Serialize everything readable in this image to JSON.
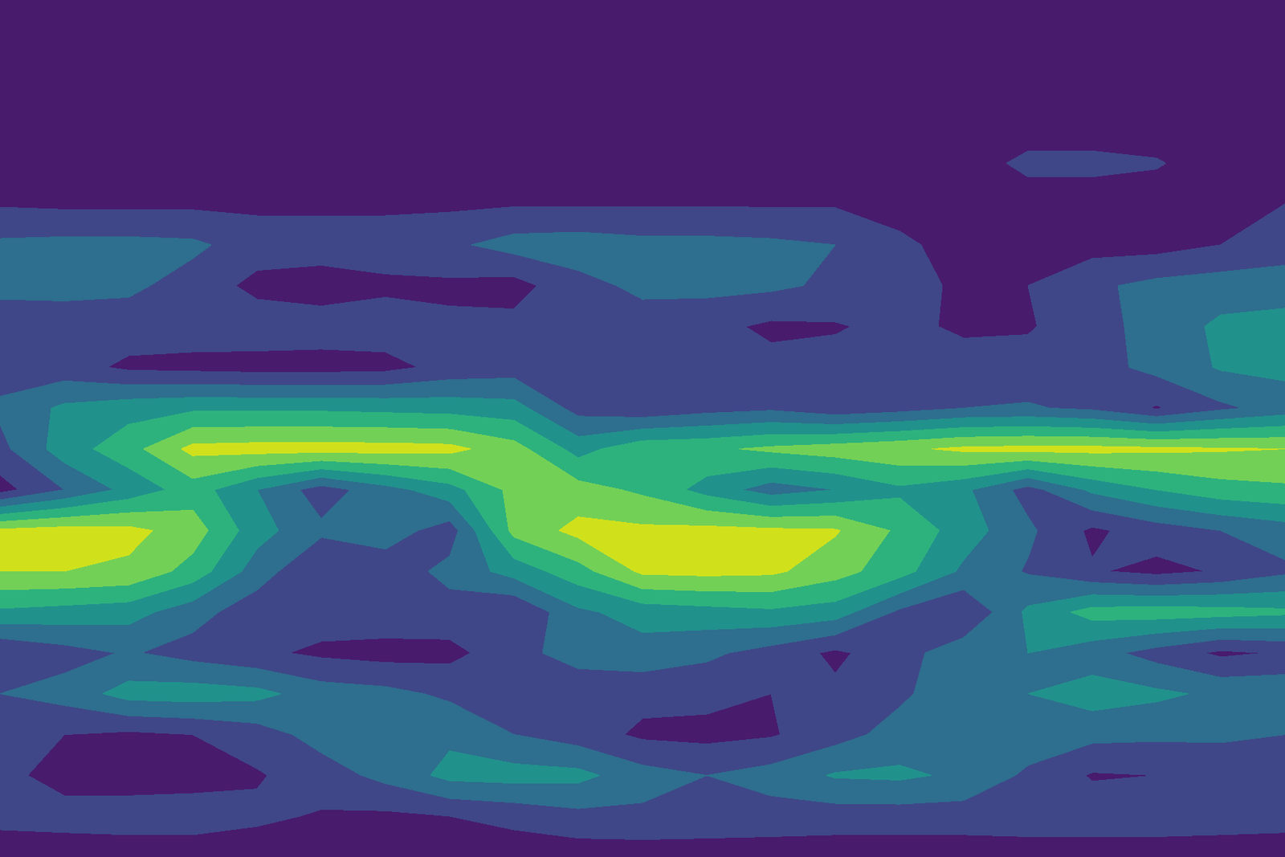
{
  "chart_data": {
    "type": "contour",
    "tick_labels": false,
    "levels": [
      0,
      1,
      2,
      3,
      4,
      5,
      6,
      7
    ],
    "cells": [
      [
        0.3,
        0.3,
        0.3,
        0.3,
        0.3,
        0.3,
        0.3,
        0.3,
        0.3,
        0.3,
        0.3,
        0.3,
        0.3,
        0.3,
        0.3,
        0.3,
        0.3,
        0.3,
        0.3,
        0.3,
        0.3
      ],
      [
        0.3,
        0.3,
        0.3,
        0.3,
        0.3,
        0.3,
        0.3,
        0.3,
        0.3,
        0.3,
        0.3,
        0.3,
        0.3,
        0.3,
        0.3,
        0.3,
        0.3,
        0.3,
        0.3,
        0.3,
        0.3
      ],
      [
        0.3,
        0.3,
        0.3,
        0.3,
        0.3,
        0.3,
        0.3,
        0.3,
        0.3,
        0.3,
        0.3,
        0.3,
        0.3,
        0.3,
        0.3,
        0.3,
        0.3,
        0.3,
        0.3,
        0.3,
        0.3
      ],
      [
        0.3,
        0.3,
        0.3,
        0.3,
        0.3,
        0.3,
        0.3,
        0.3,
        0.3,
        0.3,
        0.3,
        0.3,
        0.3,
        0.3,
        0.3,
        0.3,
        0.3,
        0.3,
        0.3,
        0.3,
        0.3
      ],
      [
        0.4,
        0.4,
        0.4,
        0.4,
        0.4,
        0.4,
        0.4,
        0.4,
        0.4,
        0.4,
        0.4,
        0.4,
        0.4,
        0.4,
        0.4,
        0.4,
        1.3,
        1.3,
        1.1,
        0.4,
        0.4
      ],
      [
        0.9,
        0.8,
        0.8,
        0.8,
        0.8,
        0.8,
        0.8,
        0.8,
        0.9,
        0.9,
        0.9,
        0.9,
        0.9,
        0.9,
        0.6,
        0.4,
        0.4,
        0.4,
        0.4,
        0.4,
        1.0
      ],
      [
        2.2,
        2.3,
        2.3,
        2.2,
        1.5,
        1.5,
        1.5,
        1.8,
        2.4,
        2.5,
        2.3,
        2.3,
        2.2,
        2.0,
        1.2,
        0.6,
        0.6,
        0.6,
        0.6,
        1.0,
        1.5
      ],
      [
        2.3,
        2.3,
        2.2,
        1.6,
        0.7,
        0.5,
        0.8,
        0.8,
        0.6,
        1.7,
        2.2,
        2.3,
        2.2,
        1.8,
        1.4,
        0.8,
        1.0,
        1.8,
        2.3,
        2.5,
        2.5
      ],
      [
        1.4,
        1.5,
        1.5,
        1.5,
        1.6,
        1.5,
        1.5,
        1.2,
        1.3,
        1.8,
        1.6,
        1.3,
        0.8,
        0.9,
        1.3,
        0.8,
        0.9,
        1.6,
        2.4,
        3.2,
        3.4
      ],
      [
        1.5,
        1.4,
        0.8,
        0.7,
        0.6,
        0.6,
        0.7,
        1.3,
        1.5,
        1.6,
        1.6,
        1.5,
        1.3,
        1.4,
        1.5,
        1.5,
        1.4,
        1.6,
        2.3,
        3.1,
        3.3
      ],
      [
        2.2,
        3.2,
        3.6,
        3.8,
        3.8,
        3.8,
        3.7,
        3.6,
        3.4,
        1.6,
        1.2,
        1.6,
        1.8,
        1.3,
        1.6,
        2.0,
        2.1,
        1.8,
        0.9,
        1.8,
        2.4
      ],
      [
        1.7,
        3.5,
        4.6,
        6.3,
        6.4,
        6.4,
        6.4,
        6.3,
        5.4,
        3.6,
        4.7,
        4.8,
        5.2,
        5.5,
        5.8,
        6.2,
        6.3,
        6.3,
        6.2,
        6.1,
        6.0
      ],
      [
        0.6,
        2.0,
        3.3,
        4.5,
        3.0,
        1.5,
        2.6,
        3.6,
        5.3,
        5.4,
        4.8,
        3.6,
        2.5,
        3.0,
        3.8,
        3.2,
        1.6,
        3.2,
        4.0,
        4.6,
        4.8
      ],
      [
        6.2,
        6.4,
        6.3,
        5.5,
        3.4,
        2.2,
        2.5,
        1.5,
        5.3,
        6.3,
        6.2,
        6.3,
        6.2,
        6.1,
        4.8,
        3.5,
        2.2,
        0.8,
        1.5,
        2.0,
        2.5
      ],
      [
        6.0,
        6.0,
        5.8,
        4.6,
        2.5,
        1.0,
        1.4,
        2.3,
        3.4,
        4.6,
        6.2,
        6.3,
        6.2,
        5.4,
        4.4,
        2.8,
        1.9,
        1.1,
        0.7,
        1.1,
        1.8
      ],
      [
        3.8,
        3.6,
        3.4,
        2.4,
        1.4,
        1.5,
        1.7,
        1.6,
        1.0,
        2.8,
        3.4,
        3.6,
        3.8,
        3.5,
        1.8,
        1.0,
        3.2,
        4.4,
        4.5,
        4.4,
        4.2
      ],
      [
        1.0,
        1.6,
        2.1,
        1.6,
        1.2,
        0.8,
        0.6,
        0.7,
        1.6,
        2.5,
        2.6,
        2.2,
        1.6,
        0.8,
        1.6,
        2.6,
        3.0,
        2.4,
        1.6,
        0.8,
        1.1
      ],
      [
        2.0,
        2.4,
        3.4,
        3.5,
        3.3,
        2.5,
        2.3,
        1.8,
        1.0,
        1.2,
        1.3,
        1.3,
        1.0,
        1.2,
        1.8,
        2.7,
        3.0,
        3.5,
        3.2,
        2.8,
        2.8
      ],
      [
        1.6,
        1.0,
        0.8,
        1.0,
        1.5,
        2.4,
        2.5,
        2.8,
        2.0,
        1.5,
        0.8,
        0.7,
        0.9,
        1.6,
        2.4,
        2.8,
        2.6,
        2.3,
        2.2,
        2.1,
        2.0
      ],
      [
        1.3,
        0.6,
        0.5,
        0.6,
        0.9,
        1.5,
        2.3,
        3.3,
        3.4,
        3.3,
        2.4,
        2.0,
        2.4,
        3.1,
        3.2,
        2.8,
        1.8,
        0.9,
        1.0,
        1.6,
        2.0
      ],
      [
        1.3,
        1.4,
        1.5,
        1.5,
        1.2,
        0.9,
        0.8,
        1.0,
        1.3,
        1.7,
        1.8,
        1.7,
        1.6,
        1.5,
        1.5,
        1.5,
        1.6,
        1.6,
        1.6,
        1.5,
        1.4
      ],
      [
        0.4,
        0.4,
        0.4,
        0.4,
        0.4,
        0.4,
        0.4,
        0.4,
        0.4,
        0.4,
        0.4,
        0.4,
        0.4,
        0.4,
        0.4,
        0.4,
        0.4,
        0.4,
        0.4,
        0.4,
        0.4
      ]
    ]
  }
}
